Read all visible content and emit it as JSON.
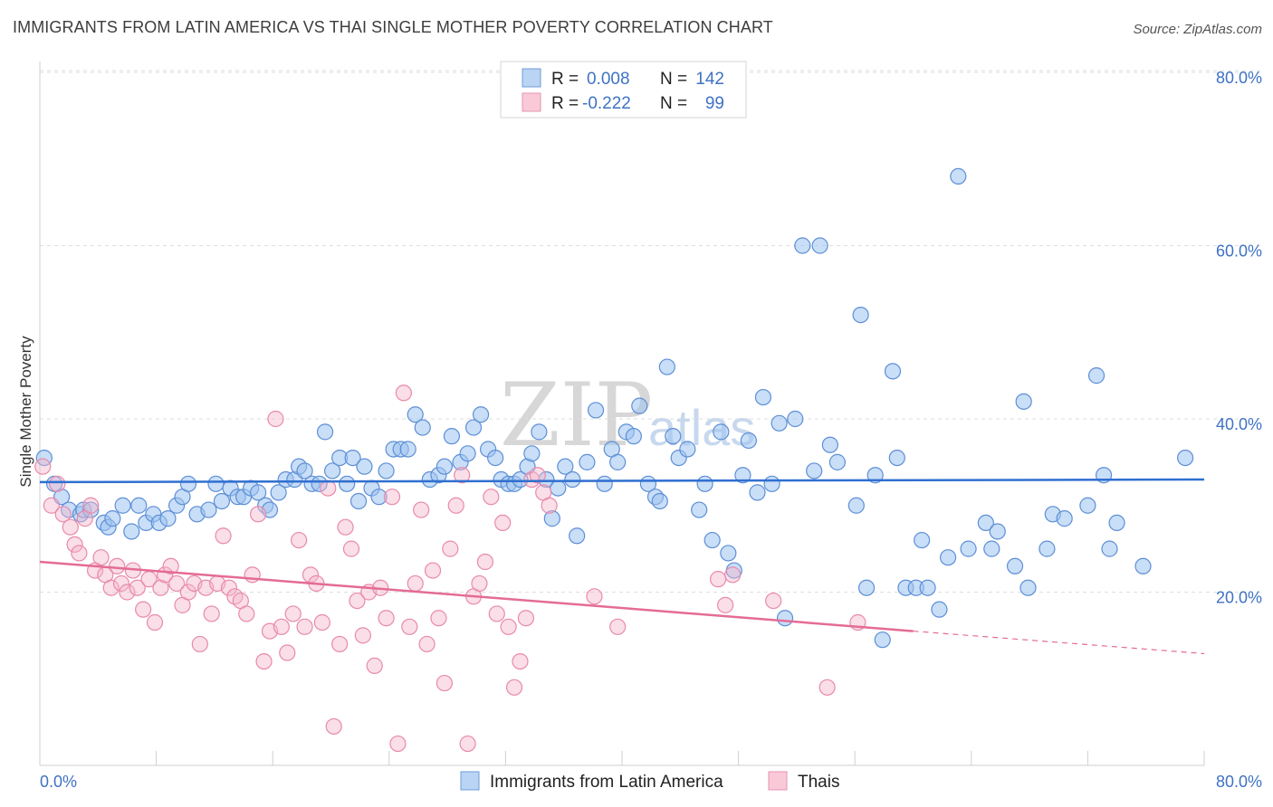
{
  "title": "IMMIGRANTS FROM LATIN AMERICA VS THAI SINGLE MOTHER POVERTY CORRELATION CHART",
  "source": "Source: ZipAtlas.com",
  "watermark": {
    "zip": "ZIP",
    "atlas": "atlas"
  },
  "colors": {
    "blue": "#3f72c4",
    "blue_fill": "#9dc3f0",
    "pink": "#e46c94",
    "pink_fill": "#f5b6cb",
    "grid": "#dcdcdc"
  },
  "legend": {
    "rows": [
      {
        "r_label": "R =",
        "r_value": "0.008",
        "n_label": "N =",
        "n_value": "142"
      },
      {
        "r_label": "R =",
        "r_value": "-0.222",
        "n_label": "N =",
        "n_value": "99"
      }
    ]
  },
  "chart_data": {
    "type": "scatter",
    "title": "IMMIGRANTS FROM LATIN AMERICA VS THAI SINGLE MOTHER POVERTY CORRELATION CHART",
    "xlabel": "",
    "ylabel": "Single Mother Poverty",
    "xlim": [
      0,
      80
    ],
    "ylim": [
      0,
      84
    ],
    "x_tick_labels": [
      "0.0%",
      "80.0%"
    ],
    "y_tick_labels": [
      "20.0%",
      "40.0%",
      "60.0%",
      "80.0%"
    ],
    "y_ticks": [
      20,
      40,
      60,
      80
    ],
    "grid": true,
    "series": [
      {
        "name": "Immigrants from Latin America",
        "color": "#3f72c4",
        "trend": {
          "x1": 0,
          "y1": 32.7,
          "x2": 80,
          "y2": 33.0
        },
        "points": [
          [
            0.3,
            35.5
          ],
          [
            1.0,
            32.5
          ],
          [
            1.5,
            31.0
          ],
          [
            2.0,
            29.5
          ],
          [
            2.8,
            29.0
          ],
          [
            3.0,
            29.5
          ],
          [
            3.5,
            29.5
          ],
          [
            4.4,
            28.0
          ],
          [
            4.7,
            27.5
          ],
          [
            5.0,
            28.5
          ],
          [
            5.7,
            30.0
          ],
          [
            6.3,
            27.0
          ],
          [
            6.8,
            30.0
          ],
          [
            7.3,
            28.0
          ],
          [
            7.8,
            29.0
          ],
          [
            8.2,
            28.0
          ],
          [
            8.8,
            28.5
          ],
          [
            9.4,
            30.0
          ],
          [
            9.8,
            31.0
          ],
          [
            10.2,
            32.5
          ],
          [
            10.8,
            29.0
          ],
          [
            11.6,
            29.5
          ],
          [
            12.1,
            32.5
          ],
          [
            12.5,
            30.5
          ],
          [
            13.1,
            32.0
          ],
          [
            13.6,
            31.0
          ],
          [
            14.0,
            31.0
          ],
          [
            14.5,
            32.0
          ],
          [
            15.0,
            31.5
          ],
          [
            15.5,
            30.0
          ],
          [
            15.8,
            29.5
          ],
          [
            16.4,
            31.5
          ],
          [
            16.9,
            33.0
          ],
          [
            17.5,
            33.0
          ],
          [
            17.8,
            34.5
          ],
          [
            18.2,
            34.0
          ],
          [
            18.7,
            32.5
          ],
          [
            19.2,
            32.5
          ],
          [
            19.6,
            38.5
          ],
          [
            20.1,
            34.0
          ],
          [
            20.6,
            35.5
          ],
          [
            21.1,
            32.5
          ],
          [
            21.5,
            35.5
          ],
          [
            21.9,
            30.5
          ],
          [
            22.3,
            34.5
          ],
          [
            22.8,
            32.0
          ],
          [
            23.3,
            31.0
          ],
          [
            23.8,
            34.0
          ],
          [
            24.3,
            36.5
          ],
          [
            24.8,
            36.5
          ],
          [
            25.3,
            36.5
          ],
          [
            25.8,
            40.5
          ],
          [
            26.3,
            39.0
          ],
          [
            26.8,
            33.0
          ],
          [
            27.4,
            33.5
          ],
          [
            27.8,
            34.5
          ],
          [
            28.3,
            38.0
          ],
          [
            28.9,
            35.0
          ],
          [
            29.4,
            36.0
          ],
          [
            29.8,
            39.0
          ],
          [
            30.3,
            40.5
          ],
          [
            30.8,
            36.5
          ],
          [
            31.3,
            35.5
          ],
          [
            31.7,
            33.0
          ],
          [
            32.2,
            32.5
          ],
          [
            32.6,
            32.5
          ],
          [
            33.0,
            33.0
          ],
          [
            33.5,
            34.5
          ],
          [
            33.8,
            36.0
          ],
          [
            34.3,
            38.5
          ],
          [
            34.8,
            33.0
          ],
          [
            35.2,
            28.5
          ],
          [
            35.6,
            32.0
          ],
          [
            36.1,
            34.5
          ],
          [
            36.6,
            33.0
          ],
          [
            36.9,
            26.5
          ],
          [
            37.6,
            35.0
          ],
          [
            38.2,
            41.0
          ],
          [
            38.8,
            32.5
          ],
          [
            39.3,
            36.5
          ],
          [
            39.7,
            35.0
          ],
          [
            40.3,
            38.5
          ],
          [
            40.8,
            38.0
          ],
          [
            41.2,
            41.5
          ],
          [
            41.8,
            32.5
          ],
          [
            42.3,
            31.0
          ],
          [
            42.6,
            30.5
          ],
          [
            43.1,
            46.0
          ],
          [
            43.5,
            38.0
          ],
          [
            43.9,
            35.5
          ],
          [
            44.5,
            36.5
          ],
          [
            45.3,
            29.5
          ],
          [
            45.7,
            32.5
          ],
          [
            46.2,
            26.0
          ],
          [
            46.8,
            38.5
          ],
          [
            47.3,
            24.5
          ],
          [
            47.7,
            22.5
          ],
          [
            48.3,
            33.5
          ],
          [
            48.7,
            37.5
          ],
          [
            49.3,
            31.5
          ],
          [
            49.7,
            42.5
          ],
          [
            50.3,
            32.5
          ],
          [
            50.8,
            39.5
          ],
          [
            51.2,
            17.0
          ],
          [
            51.9,
            40.0
          ],
          [
            52.4,
            60.0
          ],
          [
            53.2,
            34.0
          ],
          [
            53.6,
            60.0
          ],
          [
            54.3,
            37.0
          ],
          [
            54.8,
            35.0
          ],
          [
            56.1,
            30.0
          ],
          [
            56.4,
            52.0
          ],
          [
            56.8,
            20.5
          ],
          [
            57.4,
            33.5
          ],
          [
            57.9,
            14.5
          ],
          [
            58.6,
            45.5
          ],
          [
            58.9,
            35.5
          ],
          [
            59.5,
            20.5
          ],
          [
            60.2,
            20.5
          ],
          [
            60.6,
            26.0
          ],
          [
            61.0,
            20.5
          ],
          [
            61.8,
            18.0
          ],
          [
            62.4,
            24.0
          ],
          [
            63.1,
            68.0
          ],
          [
            63.8,
            25.0
          ],
          [
            65.0,
            28.0
          ],
          [
            65.8,
            27.0
          ],
          [
            65.4,
            25.0
          ],
          [
            67.0,
            23.0
          ],
          [
            67.6,
            42.0
          ],
          [
            67.9,
            20.5
          ],
          [
            69.2,
            25.0
          ],
          [
            69.6,
            29.0
          ],
          [
            70.4,
            28.5
          ],
          [
            72.0,
            30.0
          ],
          [
            72.6,
            45.0
          ],
          [
            73.1,
            33.5
          ],
          [
            73.5,
            25.0
          ],
          [
            74.0,
            28.0
          ],
          [
            75.8,
            23.0
          ],
          [
            78.7,
            35.5
          ]
        ]
      },
      {
        "name": "Thais",
        "color": "#e46c94",
        "trend": {
          "x1": 0,
          "y1": 23.5,
          "x2": 60,
          "y2": 15.5
        },
        "trend_dashed": {
          "x1": 60,
          "y1": 15.5,
          "x2": 80,
          "y2": 12.9
        },
        "points": [
          [
            0.2,
            34.5
          ],
          [
            0.8,
            30.0
          ],
          [
            1.2,
            32.5
          ],
          [
            1.6,
            29.0
          ],
          [
            2.1,
            27.5
          ],
          [
            2.4,
            25.5
          ],
          [
            2.7,
            24.5
          ],
          [
            3.1,
            28.5
          ],
          [
            3.5,
            30.0
          ],
          [
            3.8,
            22.5
          ],
          [
            4.2,
            24.0
          ],
          [
            4.5,
            22.0
          ],
          [
            4.9,
            20.5
          ],
          [
            5.3,
            23.0
          ],
          [
            5.6,
            21.0
          ],
          [
            6.0,
            20.0
          ],
          [
            6.4,
            22.5
          ],
          [
            6.7,
            20.5
          ],
          [
            7.1,
            18.0
          ],
          [
            7.5,
            21.5
          ],
          [
            7.9,
            16.5
          ],
          [
            8.3,
            20.5
          ],
          [
            8.6,
            22.0
          ],
          [
            9.0,
            23.0
          ],
          [
            9.4,
            21.0
          ],
          [
            9.8,
            18.5
          ],
          [
            10.2,
            20.0
          ],
          [
            10.6,
            21.0
          ],
          [
            11.0,
            14.0
          ],
          [
            11.4,
            20.5
          ],
          [
            11.8,
            17.5
          ],
          [
            12.2,
            21.0
          ],
          [
            12.6,
            26.5
          ],
          [
            13.0,
            20.5
          ],
          [
            13.4,
            19.5
          ],
          [
            13.8,
            19.0
          ],
          [
            14.2,
            17.5
          ],
          [
            14.6,
            22.0
          ],
          [
            15.0,
            29.0
          ],
          [
            15.4,
            12.0
          ],
          [
            15.8,
            15.5
          ],
          [
            16.2,
            40.0
          ],
          [
            16.6,
            16.0
          ],
          [
            17.0,
            13.0
          ],
          [
            17.4,
            17.5
          ],
          [
            17.8,
            26.0
          ],
          [
            18.2,
            16.0
          ],
          [
            18.6,
            22.0
          ],
          [
            19.0,
            21.0
          ],
          [
            19.4,
            16.5
          ],
          [
            19.8,
            32.0
          ],
          [
            20.2,
            4.5
          ],
          [
            20.6,
            14.0
          ],
          [
            21.0,
            27.5
          ],
          [
            21.4,
            25.0
          ],
          [
            21.8,
            19.0
          ],
          [
            22.2,
            15.0
          ],
          [
            22.6,
            20.0
          ],
          [
            23.0,
            11.5
          ],
          [
            23.4,
            20.5
          ],
          [
            23.8,
            17.0
          ],
          [
            24.2,
            31.0
          ],
          [
            24.6,
            2.5
          ],
          [
            25.0,
            43.0
          ],
          [
            25.4,
            16.0
          ],
          [
            25.8,
            21.0
          ],
          [
            26.2,
            29.5
          ],
          [
            26.6,
            14.0
          ],
          [
            27.0,
            22.5
          ],
          [
            27.4,
            17.0
          ],
          [
            27.8,
            9.5
          ],
          [
            28.2,
            25.0
          ],
          [
            28.6,
            30.0
          ],
          [
            29.0,
            33.5
          ],
          [
            29.4,
            2.5
          ],
          [
            29.8,
            19.5
          ],
          [
            30.2,
            21.0
          ],
          [
            30.6,
            23.5
          ],
          [
            31.0,
            31.0
          ],
          [
            31.4,
            17.5
          ],
          [
            31.8,
            28.0
          ],
          [
            32.2,
            16.0
          ],
          [
            32.6,
            9.0
          ],
          [
            33.0,
            12.0
          ],
          [
            33.4,
            17.0
          ],
          [
            33.8,
            33.0
          ],
          [
            34.2,
            33.5
          ],
          [
            34.6,
            31.5
          ],
          [
            35.0,
            30.0
          ],
          [
            38.1,
            19.5
          ],
          [
            39.7,
            16.0
          ],
          [
            46.6,
            21.5
          ],
          [
            47.1,
            18.5
          ],
          [
            47.6,
            22.0
          ],
          [
            50.4,
            19.0
          ],
          [
            54.1,
            9.0
          ],
          [
            56.2,
            16.5
          ]
        ]
      }
    ]
  },
  "bottom_legend": {
    "items": [
      {
        "label": "Immigrants from Latin America"
      },
      {
        "label": "Thais"
      }
    ]
  }
}
